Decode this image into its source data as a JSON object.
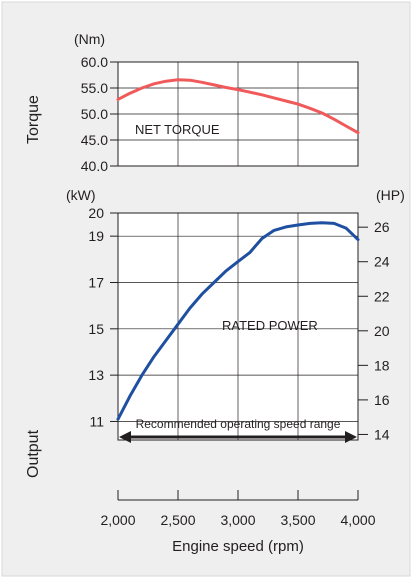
{
  "chart_data": [
    {
      "type": "line",
      "panel": "torque",
      "ylabel": "Torque",
      "y_unit": "(Nm)",
      "ylim": [
        40.0,
        60.0
      ],
      "y_ticks": [
        "60.0",
        "55.0",
        "50.0",
        "45.0",
        "40.0"
      ],
      "y_tick_values": [
        60,
        55,
        50,
        45,
        40
      ],
      "xlim": [
        2000,
        4000
      ],
      "grid": true,
      "series": [
        {
          "name": "NET TORQUE",
          "color": "#f05a5a",
          "x": [
            2000,
            2100,
            2200,
            2300,
            2400,
            2500,
            2600,
            2700,
            2800,
            2900,
            3000,
            3100,
            3200,
            3300,
            3400,
            3500,
            3600,
            3700,
            3800,
            3900,
            4000
          ],
          "y": [
            52.8,
            54.0,
            55.0,
            55.8,
            56.3,
            56.6,
            56.5,
            56.1,
            55.6,
            55.1,
            54.7,
            54.2,
            53.7,
            53.1,
            52.5,
            51.9,
            51.1,
            50.2,
            49.0,
            47.7,
            46.4
          ]
        }
      ]
    },
    {
      "type": "line",
      "panel": "output",
      "ylabel": "Output",
      "y_unit": "(kW)",
      "y2_unit": "(HP)",
      "ylim": [
        10.2,
        20.0
      ],
      "y_ticks": [
        "20",
        "19",
        "17",
        "15",
        "13",
        "11"
      ],
      "y_tick_values": [
        20,
        19,
        17,
        15,
        13,
        11
      ],
      "y2_ticks": [
        "26",
        "24",
        "22",
        "20",
        "18",
        "16",
        "14"
      ],
      "y2_tick_values": [
        26,
        24,
        22,
        20,
        18,
        16,
        14
      ],
      "xlim": [
        2000,
        4000
      ],
      "xlabel": "Engine speed (rpm)",
      "x_ticks": [
        "2,000",
        "2,500",
        "3,000",
        "3,500",
        "4,000"
      ],
      "x_tick_values": [
        2000,
        2500,
        3000,
        3500,
        4000
      ],
      "grid": true,
      "series": [
        {
          "name": "RATED POWER",
          "color": "#1f4fa0",
          "x": [
            2000,
            2100,
            2200,
            2300,
            2400,
            2500,
            2600,
            2700,
            2800,
            2900,
            3000,
            3100,
            3150,
            3200,
            3300,
            3400,
            3500,
            3600,
            3700,
            3800,
            3900,
            4000
          ],
          "y": [
            11.1,
            12.1,
            13.0,
            13.8,
            14.5,
            15.2,
            15.9,
            16.5,
            17.0,
            17.5,
            17.9,
            18.3,
            18.6,
            18.9,
            19.25,
            19.4,
            19.48,
            19.55,
            19.58,
            19.55,
            19.35,
            18.85
          ]
        }
      ],
      "annotation": {
        "text": "Recommended operating speed range",
        "x_range": [
          2000,
          4000
        ],
        "arrow": "double"
      }
    }
  ]
}
